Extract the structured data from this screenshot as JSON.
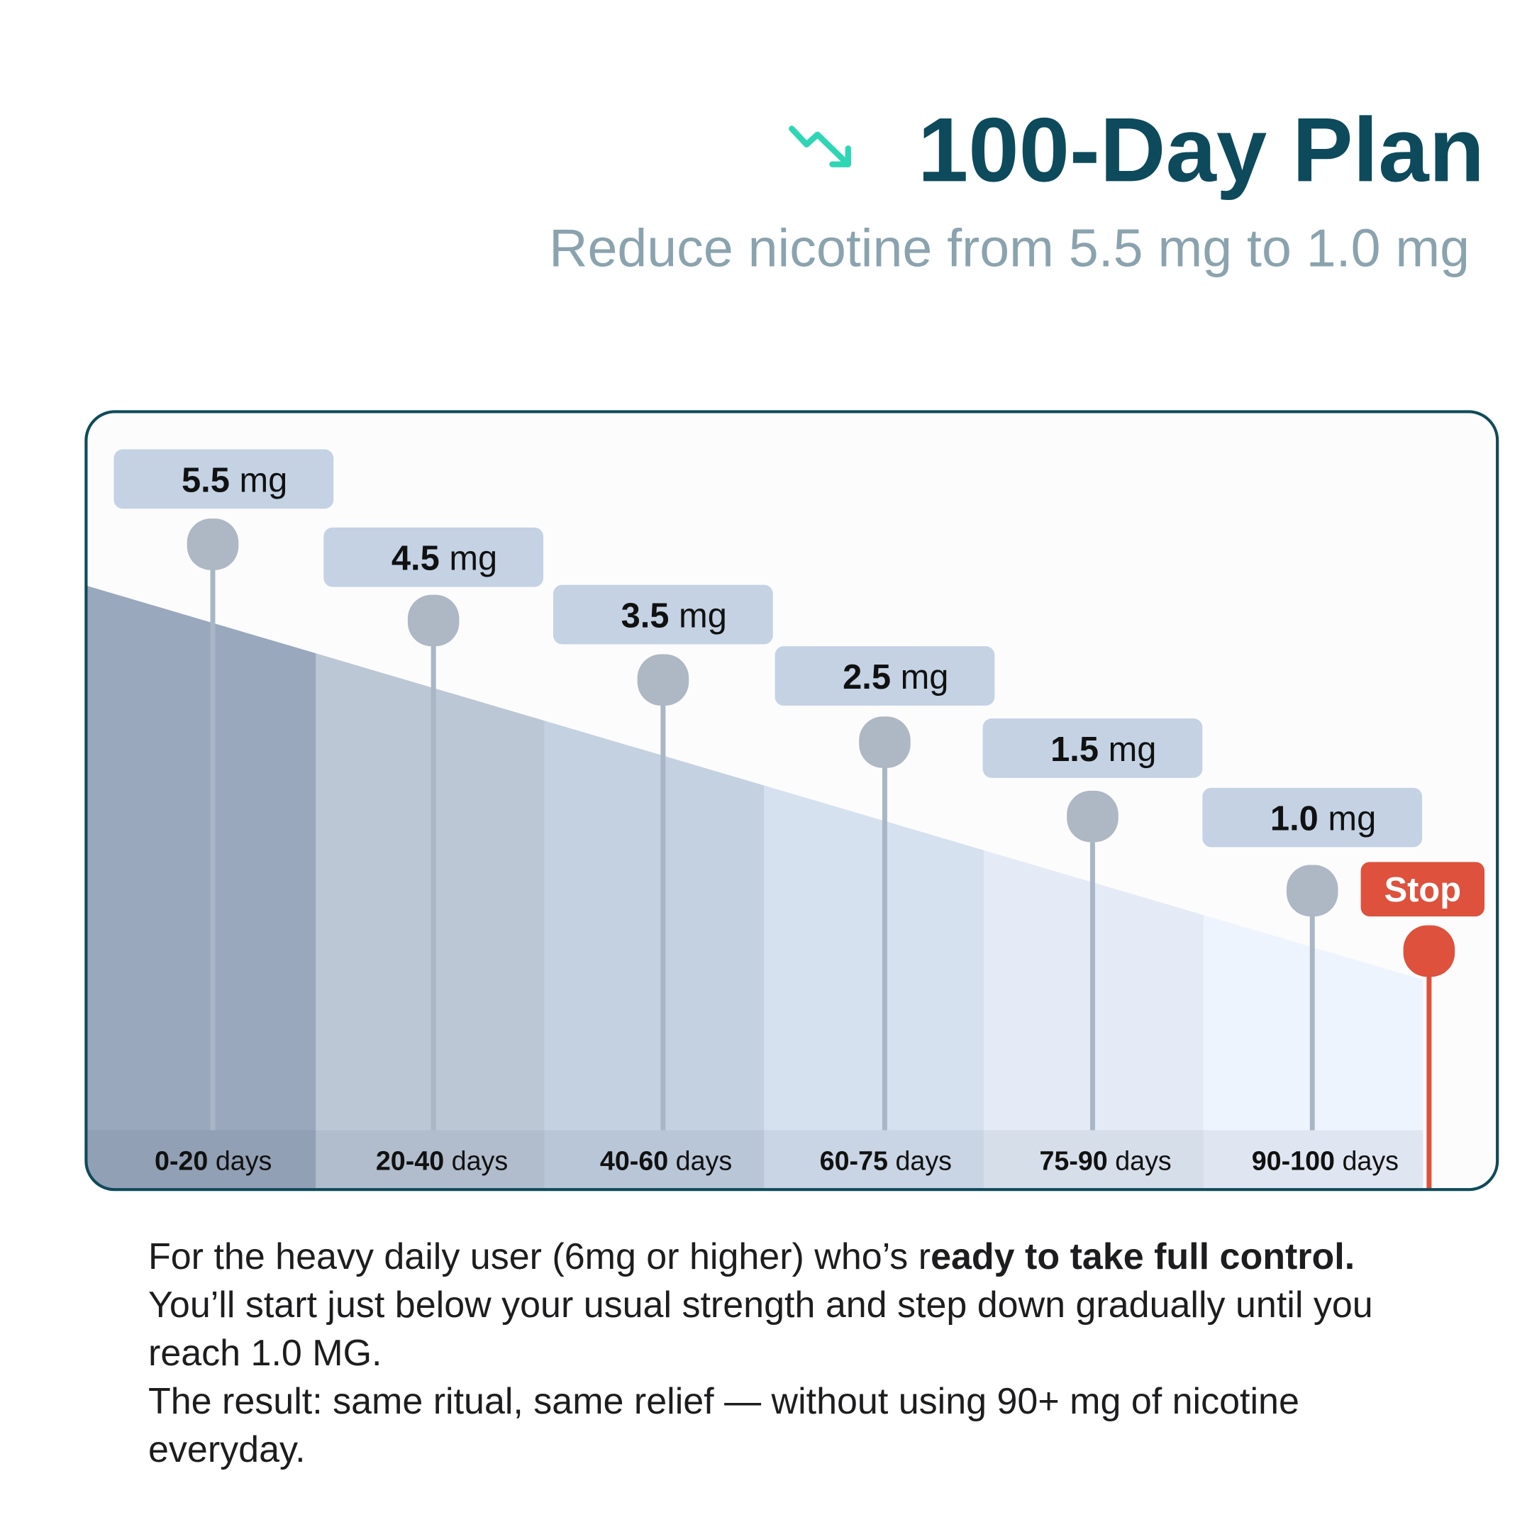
{
  "header": {
    "title": "100-Day Plan",
    "subtitle": "Reduce nicotine from 5.5 mg to 1.0 mg"
  },
  "steps": [
    {
      "amount": "5.5",
      "unit": "mg",
      "days": "0-20",
      "days_unit": "days"
    },
    {
      "amount": "4.5",
      "unit": "mg",
      "days": "20-40",
      "days_unit": "days"
    },
    {
      "amount": "3.5",
      "unit": "mg",
      "days": "40-60",
      "days_unit": "days"
    },
    {
      "amount": "2.5",
      "unit": "mg",
      "days": "60-75",
      "days_unit": "days"
    },
    {
      "amount": "1.5",
      "unit": "mg",
      "days": "75-90",
      "days_unit": "days"
    },
    {
      "amount": "1.0",
      "unit": "mg",
      "days": "90-100",
      "days_unit": "days"
    }
  ],
  "stop": "Stop",
  "body": {
    "paragraphs": [
      {
        "runs": [
          {
            "text": "For the heavy daily user (6mg or higher) who’s r",
            "bold": false
          },
          {
            "text": "eady to take full control.",
            "bold": true
          },
          {
            "text": " You’ll start just below your usual strength and step down gradually until you reach 1.0 MG.",
            "bold": false
          }
        ]
      },
      {
        "runs": [
          {
            "text": "The result: same ritual, same relief — without using 90+ mg of nicotine everyday.",
            "bold": false
          }
        ]
      }
    ]
  }
}
